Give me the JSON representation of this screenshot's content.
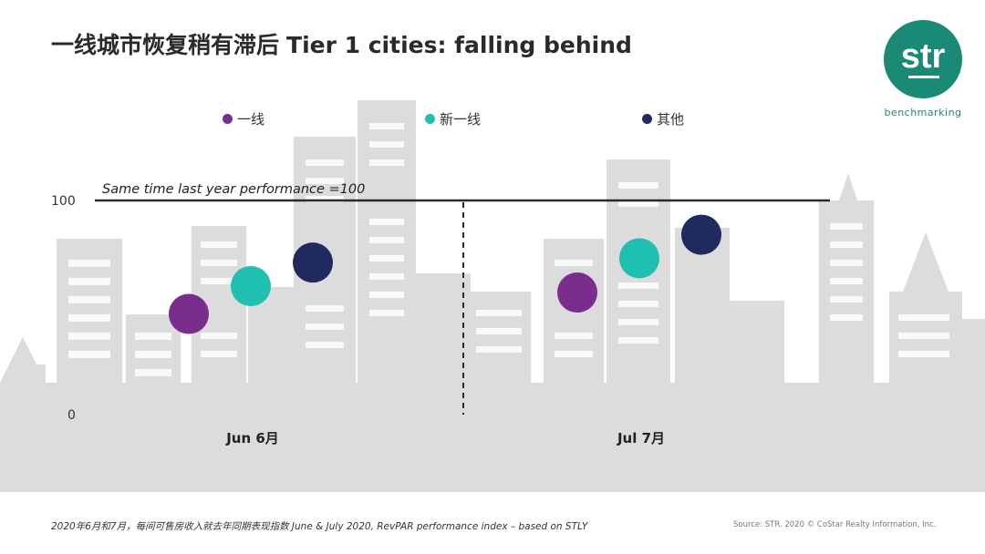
{
  "title": {
    "zh": "一线城市恢复稍有滞后",
    "en": "Tier 1 cities: falling behind"
  },
  "logo": {
    "mark": "str",
    "sub": "benchmarking"
  },
  "colors": {
    "tier1": "#7b2d8e",
    "new_tier1": "#1fbfb2",
    "other": "#1f2b5e"
  },
  "legend": [
    {
      "label": "一线",
      "color": "#7b2d8e"
    },
    {
      "label": "新一线",
      "color": "#1fbfb2"
    },
    {
      "label": "其他",
      "color": "#1f2b5e"
    }
  ],
  "chart_data": {
    "type": "scatter",
    "categories": [
      "Jun 6月",
      "Jul 7月"
    ],
    "series": [
      {
        "name": "一线",
        "values": [
          47,
          57
        ]
      },
      {
        "name": "新一线",
        "values": [
          60,
          73
        ]
      },
      {
        "name": "其他",
        "values": [
          71,
          84
        ]
      }
    ],
    "ylim": [
      0,
      100
    ],
    "yticks": [
      "0",
      "100"
    ],
    "reference_line": {
      "value": 100,
      "label": "Same time last year performance =100"
    },
    "grid": false
  },
  "footer": {
    "left": "2020年6月和7月，每间可售房收入就去年同期表现指数 June & July 2020, RevPAR performance index – based on STLY",
    "right": "Source: STR. 2020 © CoStar Realty Information, Inc."
  }
}
